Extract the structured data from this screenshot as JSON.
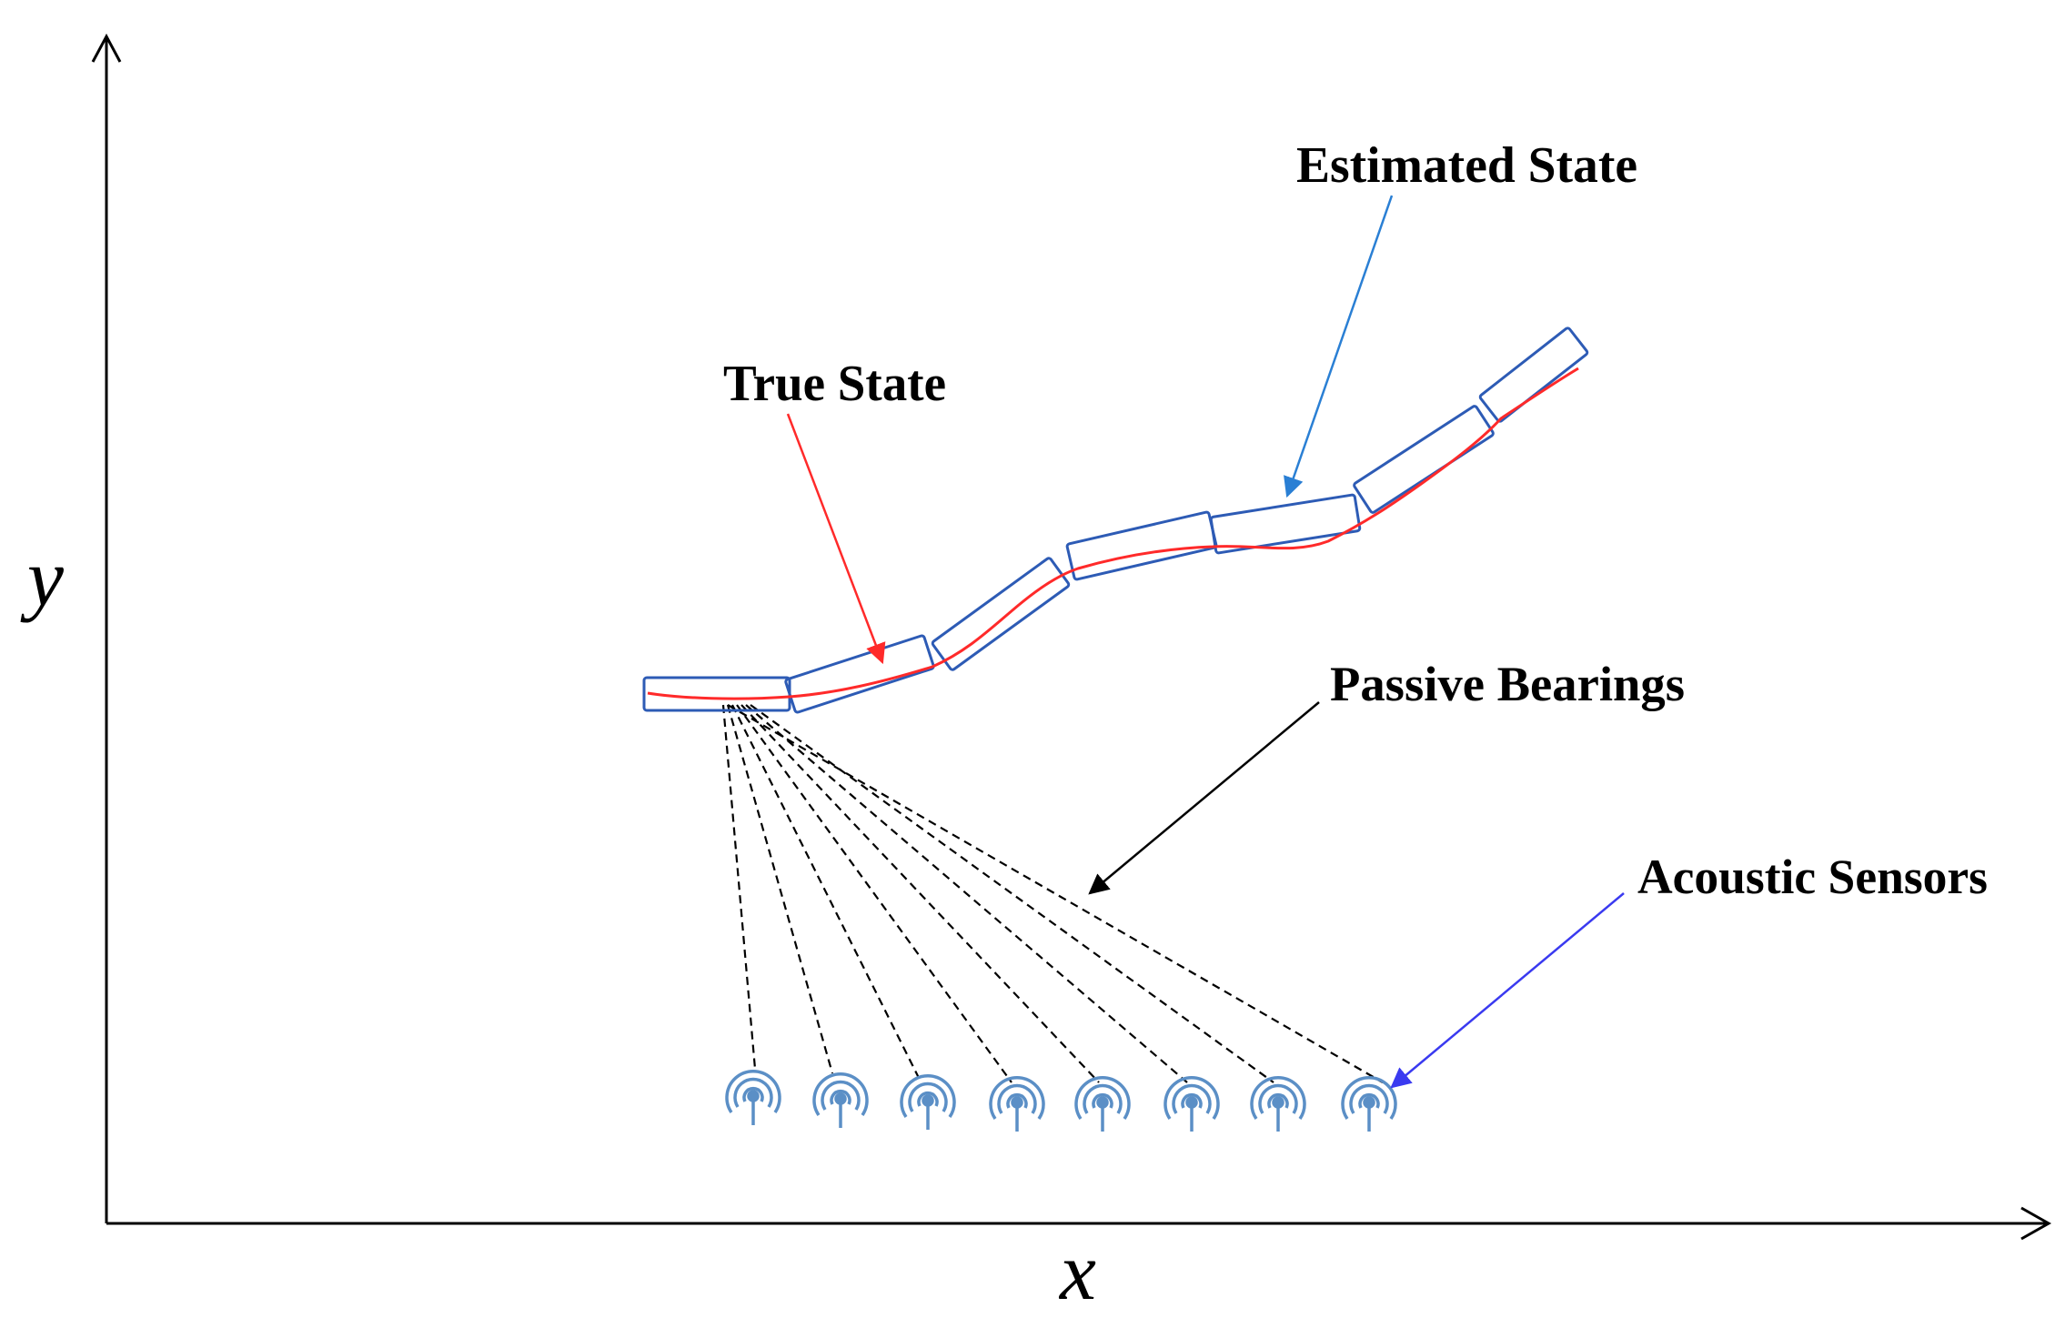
{
  "axes": {
    "x_label": "x",
    "y_label": "y"
  },
  "labels": {
    "estimated_state": "Estimated State",
    "true_state": "True State",
    "passive_bearings": "Passive Bearings",
    "acoustic_sensors": "Acoustic Sensors"
  },
  "colors": {
    "true_state": "#ff2a2a",
    "estimated_state": "#2d5bb5",
    "estimated_arrow": "#2a7fd4",
    "sensor_arrow": "#3a3af0",
    "sensor_icon": "#5b8fc6",
    "bearing": "#000000"
  },
  "icons": {
    "sensor": "antenna-icon"
  },
  "sensor_count": 8
}
